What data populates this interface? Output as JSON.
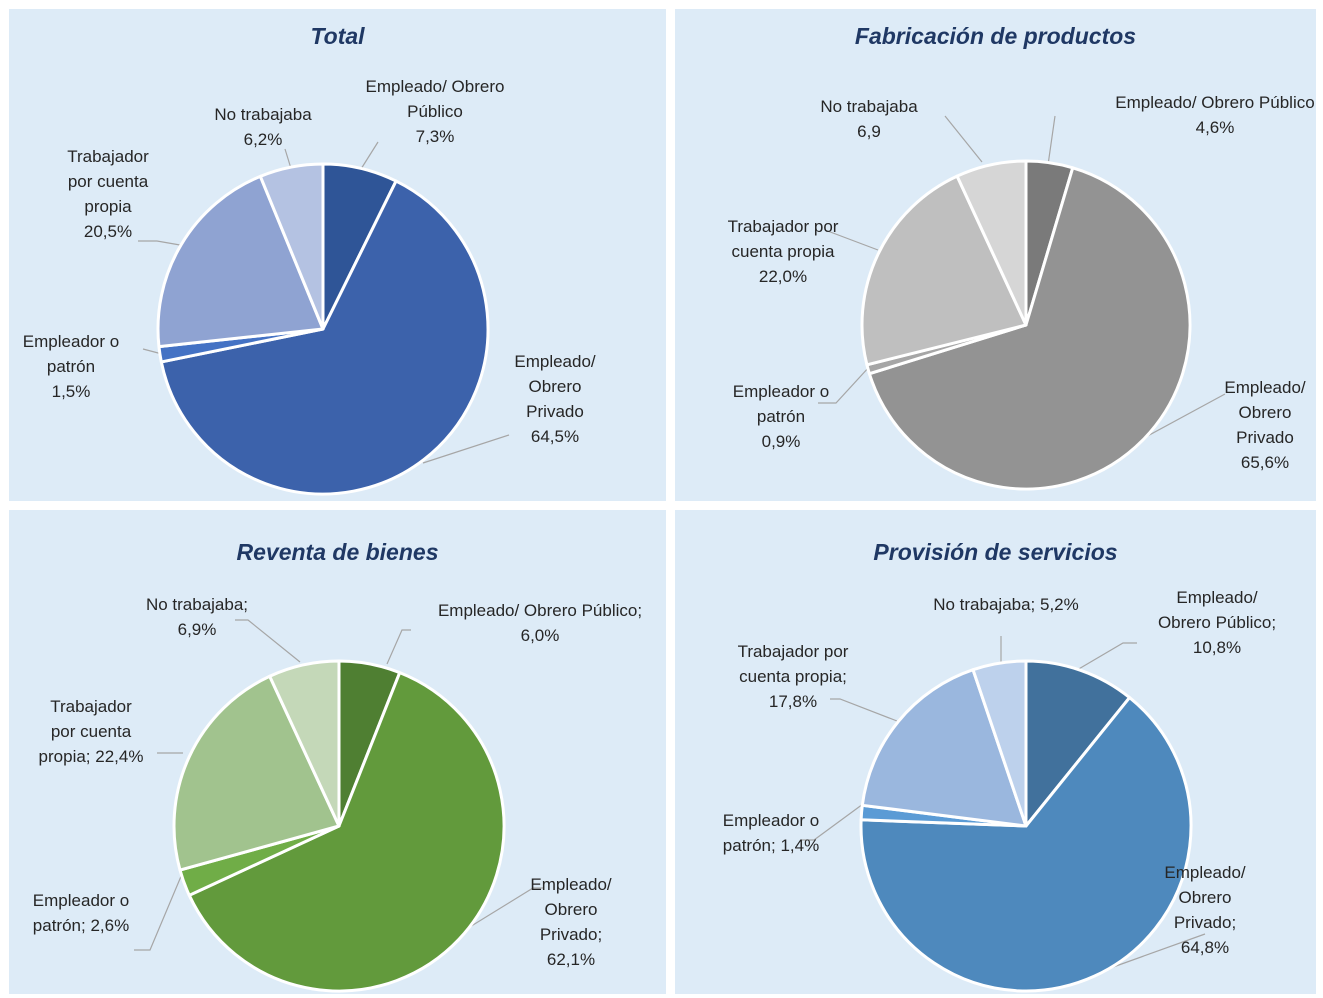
{
  "chart_data": [
    {
      "type": "pie",
      "title": "Total",
      "slices": [
        {
          "label": "Empleado/ Obrero\nPúblico\n7,3%",
          "value": 7.3,
          "color": "#2f5597"
        },
        {
          "label": "Empleado/\nObrero\nPrivado\n64,5%",
          "value": 64.5,
          "color": "#3c62ab"
        },
        {
          "label": "Empleador o\npatrón\n1,5%",
          "value": 1.5,
          "color": "#4472c4"
        },
        {
          "label": "Trabajador\npor cuenta\npropia\n20,5%",
          "value": 20.5,
          "color": "#8fa3d2"
        },
        {
          "label": "No trabajaba\n6,2%",
          "value": 6.2,
          "color": "#b4c2e2"
        }
      ]
    },
    {
      "type": "pie",
      "title": "Fabricación de productos",
      "slices": [
        {
          "label": "Empleado/ Obrero Público\n4,6%",
          "value": 4.6,
          "color": "#7a7a7a"
        },
        {
          "label": "Empleado/\nObrero\nPrivado\n65,6%",
          "value": 65.6,
          "color": "#939393"
        },
        {
          "label": "Empleador o\npatrón\n0,9%",
          "value": 0.9,
          "color": "#a6a6a6"
        },
        {
          "label": "Trabajador por\ncuenta propia\n22,0%",
          "value": 22.0,
          "color": "#bfbfbf"
        },
        {
          "label": "No trabajaba\n6,9",
          "value": 6.9,
          "color": "#d6d6d6"
        }
      ]
    },
    {
      "type": "pie",
      "title": "Reventa de bienes",
      "slices": [
        {
          "label": "Empleado/ Obrero Público;\n6,0%",
          "value": 6.0,
          "color": "#4f7f32"
        },
        {
          "label": "Empleado/\nObrero\nPrivado;\n62,1%",
          "value": 62.1,
          "color": "#629a3c"
        },
        {
          "label": "Empleador o\npatrón; 2,6%",
          "value": 2.6,
          "color": "#70ad47"
        },
        {
          "label": "Trabajador\npor cuenta\npropia; 22,4%",
          "value": 22.4,
          "color": "#a1c38e"
        },
        {
          "label": "No trabajaba;\n6,9%",
          "value": 6.9,
          "color": "#c4d8b8"
        }
      ]
    },
    {
      "type": "pie",
      "title": "Provisión de servicios",
      "slices": [
        {
          "label": "Empleado/\nObrero Público;\n10,8%",
          "value": 10.8,
          "color": "#41719c"
        },
        {
          "label": "Empleado/\nObrero\nPrivado;\n64,8%",
          "value": 64.8,
          "color": "#4e89bd"
        },
        {
          "label": "Empleador o\npatrón; 1,4%",
          "value": 1.4,
          "color": "#5b9bd5"
        },
        {
          "label": "Trabajador por\ncuenta propia;\n17,8%",
          "value": 17.8,
          "color": "#9ab7de"
        },
        {
          "label": "No trabajaba; 5,2%",
          "value": 5.2,
          "color": "#bdd1ec"
        }
      ]
    }
  ]
}
